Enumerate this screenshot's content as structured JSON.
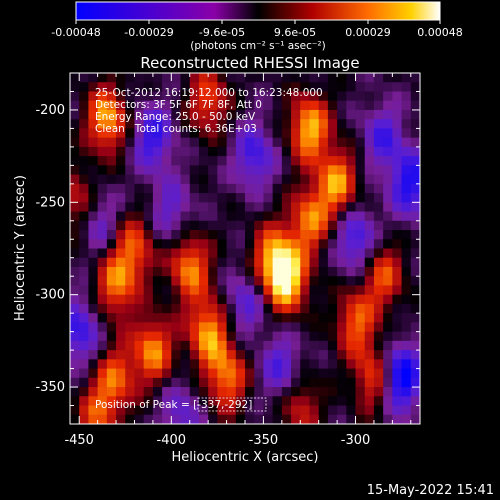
{
  "chart_data": {
    "type": "heatmap",
    "title": "Reconstructed RHESSI Image",
    "xlabel": "Heliocentric X (arcsec)",
    "ylabel": "Heliocentric Y (arcsec)",
    "xlim": [
      -455,
      -265
    ],
    "ylim": [
      -370,
      -180
    ],
    "xticks": [
      -450,
      -400,
      -350,
      -300
    ],
    "yticks": [
      -200,
      -250,
      -300,
      -350
    ],
    "colorbar": {
      "ticks": [
        "-0.00048",
        "-0.00029",
        "-9.6e-05",
        "9.6e-05",
        "0.00029",
        "0.00048"
      ],
      "range": [
        -0.00048,
        0.00048
      ],
      "unit": "(photons cm⁻² s⁻¹ asec⁻²)"
    },
    "annotations": [
      "25-Oct-2012 16:19:12.000 to 16:23:48.000",
      "Detectors: 3F 5F 6F 7F 8F, Att 0",
      "Energy Range: 25.0 - 50.0 keV",
      "Clean   Total counts: 6.36E+03"
    ],
    "peak_label": "Position of Peak = [",
    "peak_value": "-337,-292",
    "peak_close": "]",
    "peak": [
      -337,
      -292
    ],
    "colormap": "RHESSI red-temperature with blue negatives",
    "hotspots": [
      {
        "x": -435,
        "y": -205,
        "value": 0.00042
      },
      {
        "x": -380,
        "y": -195,
        "value": 0.0003
      },
      {
        "x": -325,
        "y": -210,
        "value": 0.00044
      },
      {
        "x": -310,
        "y": -240,
        "value": 0.0004
      },
      {
        "x": -325,
        "y": -260,
        "value": 0.00035
      },
      {
        "x": -420,
        "y": -275,
        "value": 0.0003
      },
      {
        "x": -430,
        "y": -295,
        "value": 0.00035
      },
      {
        "x": -390,
        "y": -285,
        "value": 0.00038
      },
      {
        "x": -380,
        "y": -320,
        "value": 0.0004
      },
      {
        "x": -345,
        "y": -280,
        "value": 0.00036
      },
      {
        "x": -337,
        "y": -292,
        "value": 0.00048
      },
      {
        "x": -300,
        "y": -315,
        "value": 0.00032
      },
      {
        "x": -410,
        "y": -330,
        "value": 0.00038
      },
      {
        "x": -430,
        "y": -345,
        "value": 0.0003
      },
      {
        "x": -370,
        "y": -345,
        "value": 0.00036
      },
      {
        "x": -285,
        "y": -290,
        "value": 0.0003
      },
      {
        "x": -290,
        "y": -345,
        "value": 0.0003
      },
      {
        "x": -440,
        "y": -365,
        "value": 0.00028
      },
      {
        "x": -330,
        "y": -360,
        "value": 0.00024
      },
      {
        "x": -450,
        "y": -250,
        "value": 0.00025
      }
    ],
    "coldspots": [
      {
        "x": -410,
        "y": -215,
        "value": -0.0003
      },
      {
        "x": -355,
        "y": -225,
        "value": -0.00028
      },
      {
        "x": -285,
        "y": -215,
        "value": -0.00025
      },
      {
        "x": -440,
        "y": -260,
        "value": -0.00022
      },
      {
        "x": -400,
        "y": -255,
        "value": -0.0002
      },
      {
        "x": -300,
        "y": -270,
        "value": -0.0003
      },
      {
        "x": -360,
        "y": -305,
        "value": -0.00022
      },
      {
        "x": -450,
        "y": -320,
        "value": -0.0003
      },
      {
        "x": -340,
        "y": -340,
        "value": -0.00025
      },
      {
        "x": -275,
        "y": -345,
        "value": -0.00045
      },
      {
        "x": -270,
        "y": -240,
        "value": -0.00035
      },
      {
        "x": -395,
        "y": -365,
        "value": -0.0002
      }
    ]
  },
  "footer": {
    "timestamp": "15-May-2022 15:41"
  }
}
